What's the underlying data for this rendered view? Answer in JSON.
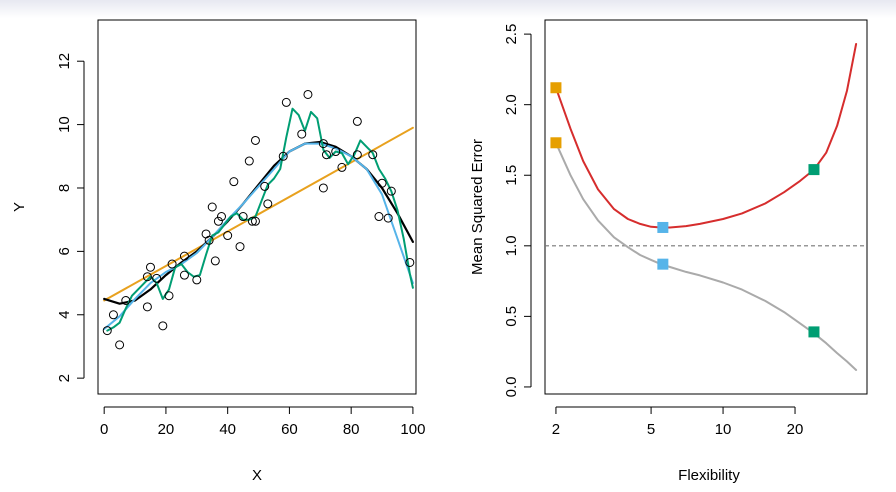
{
  "chart_data": [
    {
      "type": "scatter",
      "title": "",
      "xlabel": "X",
      "ylabel": "Y",
      "xlim": [
        -2,
        101
      ],
      "ylim": [
        1.5,
        13.3
      ],
      "grid": false,
      "x_ticks": [
        0,
        20,
        40,
        60,
        80,
        100
      ],
      "x_tick_labels": [
        "0",
        "20",
        "40",
        "60",
        "80",
        "100"
      ],
      "y_ticks": [
        2,
        4,
        6,
        8,
        10,
        12
      ],
      "y_tick_labels": [
        "2",
        "4",
        "6",
        "8",
        "10",
        "12"
      ],
      "points": [
        {
          "x": 1,
          "y": 3.5
        },
        {
          "x": 3,
          "y": 4.0
        },
        {
          "x": 5,
          "y": 3.05
        },
        {
          "x": 7,
          "y": 4.45
        },
        {
          "x": 14,
          "y": 4.25
        },
        {
          "x": 14,
          "y": 5.2
        },
        {
          "x": 15,
          "y": 5.5
        },
        {
          "x": 17,
          "y": 5.15
        },
        {
          "x": 19,
          "y": 3.65
        },
        {
          "x": 21,
          "y": 4.6
        },
        {
          "x": 22,
          "y": 5.6
        },
        {
          "x": 26,
          "y": 5.85
        },
        {
          "x": 26,
          "y": 5.25
        },
        {
          "x": 30,
          "y": 5.1
        },
        {
          "x": 33,
          "y": 6.55
        },
        {
          "x": 34,
          "y": 6.35
        },
        {
          "x": 35,
          "y": 7.4
        },
        {
          "x": 36,
          "y": 5.7
        },
        {
          "x": 37,
          "y": 6.95
        },
        {
          "x": 38,
          "y": 7.1
        },
        {
          "x": 40,
          "y": 6.5
        },
        {
          "x": 42,
          "y": 8.2
        },
        {
          "x": 44,
          "y": 6.15
        },
        {
          "x": 45,
          "y": 7.1
        },
        {
          "x": 47,
          "y": 8.85
        },
        {
          "x": 48,
          "y": 6.95
        },
        {
          "x": 49,
          "y": 9.5
        },
        {
          "x": 49,
          "y": 6.95
        },
        {
          "x": 52,
          "y": 8.05
        },
        {
          "x": 53,
          "y": 7.5
        },
        {
          "x": 58,
          "y": 9.0
        },
        {
          "x": 59,
          "y": 10.7
        },
        {
          "x": 64,
          "y": 9.7
        },
        {
          "x": 66,
          "y": 10.95
        },
        {
          "x": 71,
          "y": 8.0
        },
        {
          "x": 71,
          "y": 9.4
        },
        {
          "x": 72,
          "y": 9.05
        },
        {
          "x": 75,
          "y": 9.15
        },
        {
          "x": 77,
          "y": 8.65
        },
        {
          "x": 82,
          "y": 10.1
        },
        {
          "x": 82,
          "y": 9.05
        },
        {
          "x": 87,
          "y": 9.05
        },
        {
          "x": 89,
          "y": 7.1
        },
        {
          "x": 90,
          "y": 8.15
        },
        {
          "x": 92,
          "y": 7.05
        },
        {
          "x": 93,
          "y": 7.9
        },
        {
          "x": 99,
          "y": 5.65
        }
      ],
      "series": [
        {
          "kind": "linear fit",
          "color": "#e8a11e",
          "x": [
            0,
            100
          ],
          "y": [
            4.45,
            9.9
          ]
        },
        {
          "kind": "true function",
          "color": "#000000",
          "x": [
            0,
            5,
            10,
            15,
            20,
            25,
            30,
            35,
            40,
            45,
            50,
            55,
            60,
            65,
            70,
            75,
            80,
            85,
            90,
            95,
            100
          ],
          "y": [
            4.5,
            4.35,
            4.45,
            4.8,
            5.25,
            5.65,
            6.0,
            6.45,
            6.95,
            7.5,
            8.1,
            8.7,
            9.15,
            9.4,
            9.45,
            9.3,
            9.0,
            8.6,
            8.0,
            7.2,
            6.3
          ]
        },
        {
          "kind": "smooth fit",
          "color": "#56b4e9",
          "x": [
            0,
            5,
            10,
            15,
            20,
            25,
            30,
            35,
            40,
            45,
            50,
            55,
            60,
            65,
            70,
            75,
            80,
            85,
            90,
            95,
            100
          ],
          "y": [
            3.55,
            3.95,
            4.5,
            5.0,
            5.35,
            5.6,
            5.95,
            6.45,
            7.0,
            7.5,
            8.05,
            8.6,
            9.15,
            9.4,
            9.4,
            9.25,
            9.0,
            8.6,
            7.8,
            6.4,
            5.0
          ]
        },
        {
          "kind": "flexible fit",
          "color": "#009e73",
          "x": [
            1,
            3,
            5,
            7,
            9,
            11,
            13,
            15,
            17,
            19,
            21,
            23,
            25,
            27,
            29,
            31,
            33,
            35,
            37,
            39,
            41,
            43,
            45,
            47,
            49,
            51,
            53,
            55,
            57,
            59,
            61,
            63,
            65,
            67,
            69,
            71,
            73,
            75,
            77,
            79,
            81,
            83,
            85,
            87,
            89,
            91,
            93,
            95,
            97,
            99,
            100
          ],
          "y": [
            3.5,
            3.6,
            3.75,
            4.2,
            4.6,
            4.8,
            5.0,
            5.2,
            5.0,
            4.5,
            4.8,
            5.5,
            5.6,
            5.35,
            5.2,
            5.25,
            5.9,
            6.5,
            6.6,
            6.85,
            7.1,
            7.2,
            7.0,
            7.0,
            7.1,
            7.6,
            8.1,
            8.3,
            8.6,
            9.6,
            10.5,
            10.3,
            9.8,
            10.4,
            10.2,
            9.2,
            8.95,
            9.15,
            9.1,
            8.75,
            9.05,
            9.5,
            9.3,
            9.1,
            8.6,
            8.3,
            7.9,
            7.3,
            6.4,
            5.3,
            4.85
          ]
        }
      ]
    },
    {
      "type": "line",
      "title": "",
      "xlabel": "Flexibility",
      "ylabel": "Mean Squared Error",
      "x_scale": "log",
      "xlim": [
        1.8,
        40
      ],
      "ylim": [
        -0.05,
        2.6
      ],
      "grid": false,
      "x_ticks": [
        2,
        5,
        10,
        20
      ],
      "x_tick_labels": [
        "2",
        "5",
        "10",
        "20"
      ],
      "y_ticks": [
        0.0,
        0.5,
        1.0,
        1.5,
        2.0,
        2.5
      ],
      "y_tick_labels": [
        "0.0",
        "0.5",
        "1.0",
        "1.5",
        "2.0",
        "2.5"
      ],
      "reference_line": {
        "y": 1.0,
        "style": "dashed",
        "color": "#777777"
      },
      "series": [
        {
          "kind": "test MSE",
          "color": "#d62d2d",
          "x": [
            2,
            2.3,
            2.6,
            3,
            3.5,
            4,
            4.5,
            5,
            5.5,
            6,
            7,
            8,
            10,
            12,
            15,
            18,
            21,
            24,
            27,
            30,
            33,
            36
          ],
          "y": [
            2.12,
            1.83,
            1.6,
            1.4,
            1.26,
            1.19,
            1.155,
            1.135,
            1.13,
            1.13,
            1.14,
            1.155,
            1.19,
            1.23,
            1.3,
            1.38,
            1.46,
            1.54,
            1.66,
            1.85,
            2.1,
            2.43
          ]
        },
        {
          "kind": "training MSE",
          "color": "#aaaaaa",
          "x": [
            2,
            2.3,
            2.6,
            3,
            3.5,
            4,
            4.5,
            5,
            5.5,
            6,
            7,
            8,
            10,
            12,
            15,
            18,
            21,
            24,
            27,
            30,
            33,
            36
          ],
          "y": [
            1.73,
            1.5,
            1.33,
            1.18,
            1.06,
            0.99,
            0.935,
            0.9,
            0.87,
            0.85,
            0.815,
            0.79,
            0.74,
            0.69,
            0.61,
            0.53,
            0.45,
            0.38,
            0.31,
            0.24,
            0.18,
            0.12
          ]
        }
      ],
      "markers": [
        {
          "x": 2,
          "y": 2.12,
          "color": "#e69f00"
        },
        {
          "x": 2,
          "y": 1.73,
          "color": "#e69f00"
        },
        {
          "x": 5.6,
          "y": 1.13,
          "color": "#56b4e9"
        },
        {
          "x": 5.6,
          "y": 0.87,
          "color": "#56b4e9"
        },
        {
          "x": 24,
          "y": 1.54,
          "color": "#009e73"
        },
        {
          "x": 24,
          "y": 0.39,
          "color": "#009e73"
        }
      ]
    }
  ]
}
